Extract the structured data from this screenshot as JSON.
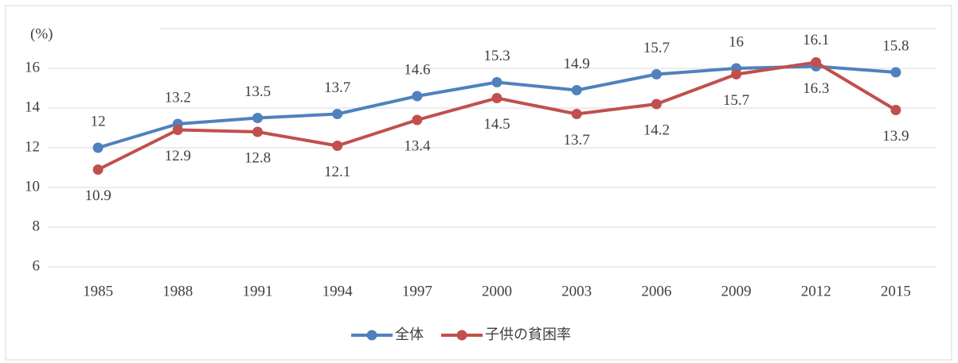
{
  "chart_data": {
    "type": "line",
    "y_label": "(%)",
    "categories": [
      "1985",
      "1988",
      "1991",
      "1994",
      "1997",
      "2000",
      "2003",
      "2006",
      "2009",
      "2012",
      "2015"
    ],
    "series": [
      {
        "name": "全体",
        "color": "#4f81bd",
        "values": [
          12,
          13.2,
          13.5,
          13.7,
          14.6,
          15.3,
          14.9,
          15.7,
          16,
          16.1,
          15.8
        ]
      },
      {
        "name": "子供の貧困率",
        "color": "#c0504d",
        "values": [
          10.9,
          12.9,
          12.8,
          12.1,
          13.4,
          14.5,
          13.7,
          14.2,
          15.7,
          16.3,
          13.9
        ]
      }
    ],
    "ylim": [
      6,
      18
    ],
    "yticks": [
      6,
      8,
      10,
      12,
      14,
      16
    ],
    "grid": true,
    "legend": "bottom"
  }
}
